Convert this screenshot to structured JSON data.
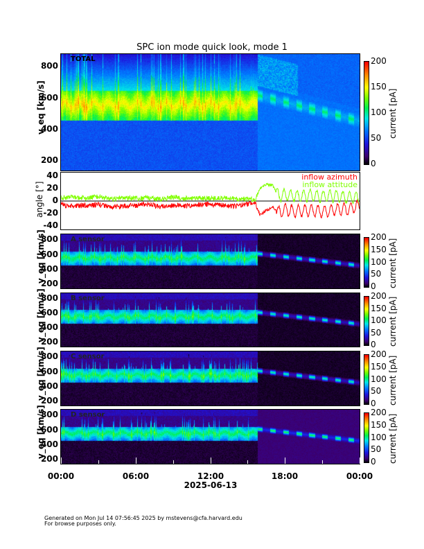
{
  "title": "SPC ion mode quick look, mode 1",
  "chart_data": [
    {
      "type": "heatmap",
      "panel_label": "TOTAL",
      "ylabel": "v_eq [km/s]",
      "yticks": [
        200,
        400,
        600,
        800
      ],
      "ylim": [
        140,
        880
      ],
      "colorbar": {
        "label": "current [pA]",
        "ticks": [
          0,
          50,
          100,
          150,
          200
        ],
        "range": [
          0,
          200
        ]
      }
    },
    {
      "type": "line",
      "ylabel": "angle [°]",
      "yticks": [
        -40,
        -20,
        0,
        20,
        40
      ],
      "ylim": [
        -45,
        45
      ],
      "x_hours": [
        0,
        1,
        2,
        3,
        4,
        5,
        6,
        7,
        8,
        9,
        10,
        11,
        12,
        13,
        14,
        15,
        15.6,
        16,
        16.5,
        17,
        17.5,
        18,
        19,
        20,
        21,
        22,
        23,
        24
      ],
      "series": [
        {
          "name": "inflow azimuth",
          "color": "#ff0000",
          "values": [
            -6,
            -8,
            -7,
            -6,
            -9,
            -8,
            -7,
            -5,
            -9,
            -7,
            -8,
            -6,
            -5,
            -7,
            -8,
            -5,
            -3,
            -22,
            -15,
            -10,
            -18,
            -14,
            -16,
            -15,
            -17,
            -14,
            -13,
            -8
          ]
        },
        {
          "name": "inflow attitude",
          "color": "#80ff00",
          "values": [
            5,
            6,
            4,
            7,
            3,
            5,
            4,
            5,
            3,
            6,
            4,
            5,
            4,
            5,
            4,
            3,
            2,
            20,
            26,
            25,
            8,
            10,
            8,
            9,
            7,
            8,
            6,
            5
          ]
        }
      ]
    },
    {
      "type": "heatmap",
      "panel_label": "A sensor",
      "ylabel": "v_eq [km/s]",
      "yticks": [
        200,
        400,
        600,
        800
      ],
      "colorbar": {
        "label": "current [pA]",
        "ticks": [
          0,
          50,
          100,
          150,
          200
        ]
      }
    },
    {
      "type": "heatmap",
      "panel_label": "B sensor",
      "ylabel": "v_eq [km/s]",
      "yticks": [
        200,
        400,
        600,
        800
      ],
      "colorbar": {
        "label": "current [pA]",
        "ticks": [
          0,
          50,
          100,
          150,
          200
        ]
      }
    },
    {
      "type": "heatmap",
      "panel_label": "C sensor",
      "ylabel": "v_eq [km/s]",
      "yticks": [
        200,
        400,
        600,
        800
      ],
      "colorbar": {
        "label": "current [pA]",
        "ticks": [
          0,
          50,
          100,
          150,
          200
        ]
      }
    },
    {
      "type": "heatmap",
      "panel_label": "D sensor",
      "ylabel": "v_eq [km/s]",
      "yticks": [
        200,
        400,
        600,
        800
      ],
      "colorbar": {
        "label": "current [pA]",
        "ticks": [
          0,
          50,
          100,
          150,
          200
        ]
      }
    }
  ],
  "x_axis": {
    "ticks": [
      "00:00",
      "06:00",
      "12:00",
      "18:00",
      "00:00"
    ],
    "date": "2025-06-13"
  },
  "footer": {
    "line1": "Generated on Mon Jul 14 07:56:45 2025 by mstevens@cfa.harvard.edu",
    "line2": "For browse purposes only."
  }
}
